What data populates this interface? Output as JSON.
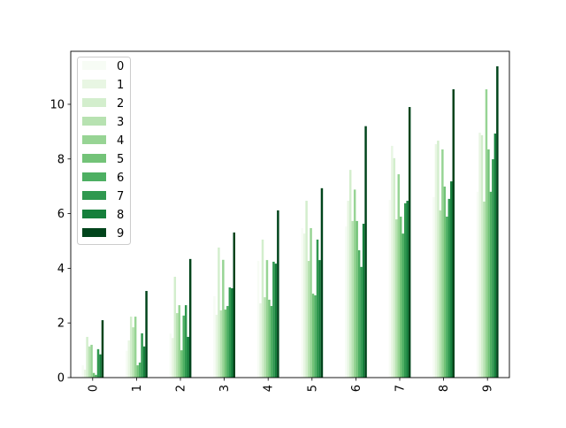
{
  "chart_data": {
    "type": "bar",
    "title": "",
    "xlabel": "",
    "ylabel": "",
    "categories": [
      "0",
      "1",
      "2",
      "3",
      "4",
      "5",
      "6",
      "7",
      "8",
      "9"
    ],
    "ylim": [
      0,
      11.94
    ],
    "yticks": [
      0,
      2,
      4,
      6,
      8,
      10
    ],
    "grid": false,
    "legend_position": "top-left",
    "colormap": "Greens",
    "series": [
      {
        "name": "0",
        "color": "#f7fcf5",
        "values": [
          0.45,
          0.98,
          1.61,
          2.98,
          4.27,
          5.47,
          5.53,
          6.5,
          6.6,
          6.8
        ]
      },
      {
        "name": "1",
        "color": "#e8f6e3",
        "values": [
          0.29,
          1.36,
          1.45,
          2.3,
          2.72,
          5.27,
          6.47,
          8.48,
          8.54,
          8.96
        ]
      },
      {
        "name": "2",
        "color": "#d3eecd",
        "values": [
          1.49,
          2.23,
          3.69,
          4.76,
          5.05,
          6.47,
          7.6,
          8.03,
          8.67,
          8.87
        ]
      },
      {
        "name": "3",
        "color": "#b7e2b1",
        "values": [
          1.14,
          1.84,
          2.36,
          2.46,
          2.94,
          4.27,
          5.73,
          5.79,
          6.12,
          6.44
        ]
      },
      {
        "name": "4",
        "color": "#97d494",
        "values": [
          1.2,
          2.23,
          2.65,
          4.31,
          4.3,
          5.47,
          6.88,
          7.44,
          8.35,
          10.55
        ]
      },
      {
        "name": "5",
        "color": "#73c378",
        "values": [
          0.17,
          0.45,
          1.0,
          2.49,
          2.85,
          3.07,
          5.73,
          5.89,
          6.99,
          8.35
        ]
      },
      {
        "name": "6",
        "color": "#4daf62",
        "values": [
          0.1,
          0.55,
          2.27,
          2.62,
          2.62,
          3.01,
          4.66,
          5.27,
          5.89,
          6.8
        ]
      },
      {
        "name": "7",
        "color": "#2f984f",
        "values": [
          1.04,
          1.62,
          2.65,
          3.3,
          4.24,
          5.05,
          4.05,
          6.38,
          6.54,
          7.99
        ]
      },
      {
        "name": "8",
        "color": "#157f3b",
        "values": [
          0.85,
          1.14,
          1.49,
          3.27,
          4.17,
          4.3,
          5.63,
          6.47,
          7.18,
          8.93
        ]
      },
      {
        "name": "9",
        "color": "#00441b",
        "values": [
          2.1,
          3.17,
          4.34,
          5.31,
          6.12,
          6.93,
          9.2,
          9.9,
          10.55,
          11.39
        ]
      }
    ]
  }
}
